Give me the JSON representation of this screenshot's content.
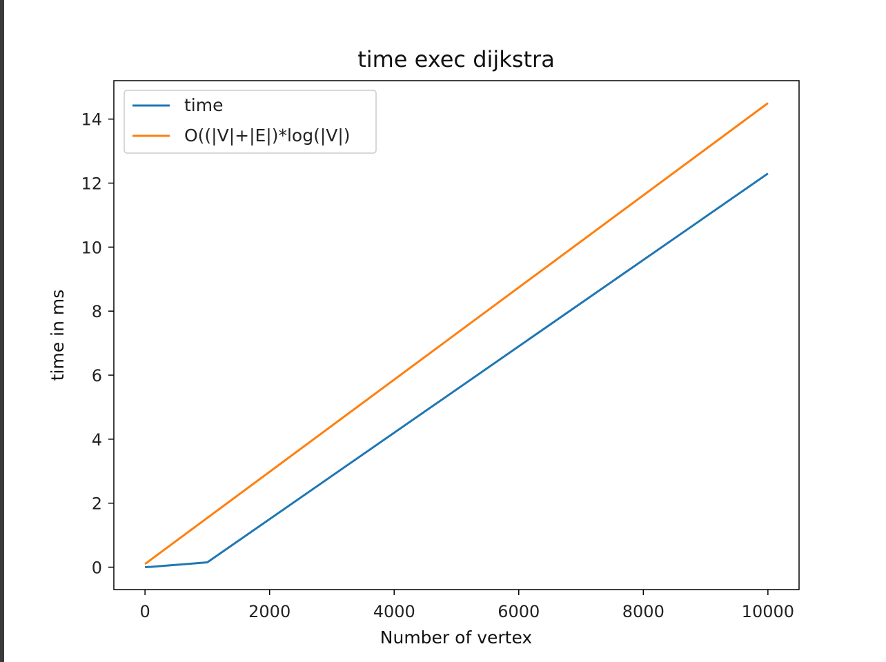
{
  "chart_data": {
    "type": "line",
    "title": "time exec dijkstra",
    "xlabel": "Number of vertex",
    "ylabel": "time in ms",
    "xlim": [
      -500,
      10500
    ],
    "ylim": [
      -0.7,
      15.2
    ],
    "xticks": [
      0,
      2000,
      4000,
      6000,
      8000,
      10000
    ],
    "yticks": [
      0,
      2,
      4,
      6,
      8,
      10,
      12,
      14
    ],
    "grid": false,
    "legend_position": "top-left",
    "series": [
      {
        "name": "time",
        "color": "#1f77b4",
        "x": [
          0,
          100,
          1000,
          10000
        ],
        "y": [
          0.0,
          0.01,
          0.15,
          12.3
        ]
      },
      {
        "name": "O((|V|+|E|)*log(|V|)",
        "color": "#ff7f0e",
        "x": [
          0,
          10000
        ],
        "y": [
          0.1,
          14.5
        ]
      }
    ]
  }
}
